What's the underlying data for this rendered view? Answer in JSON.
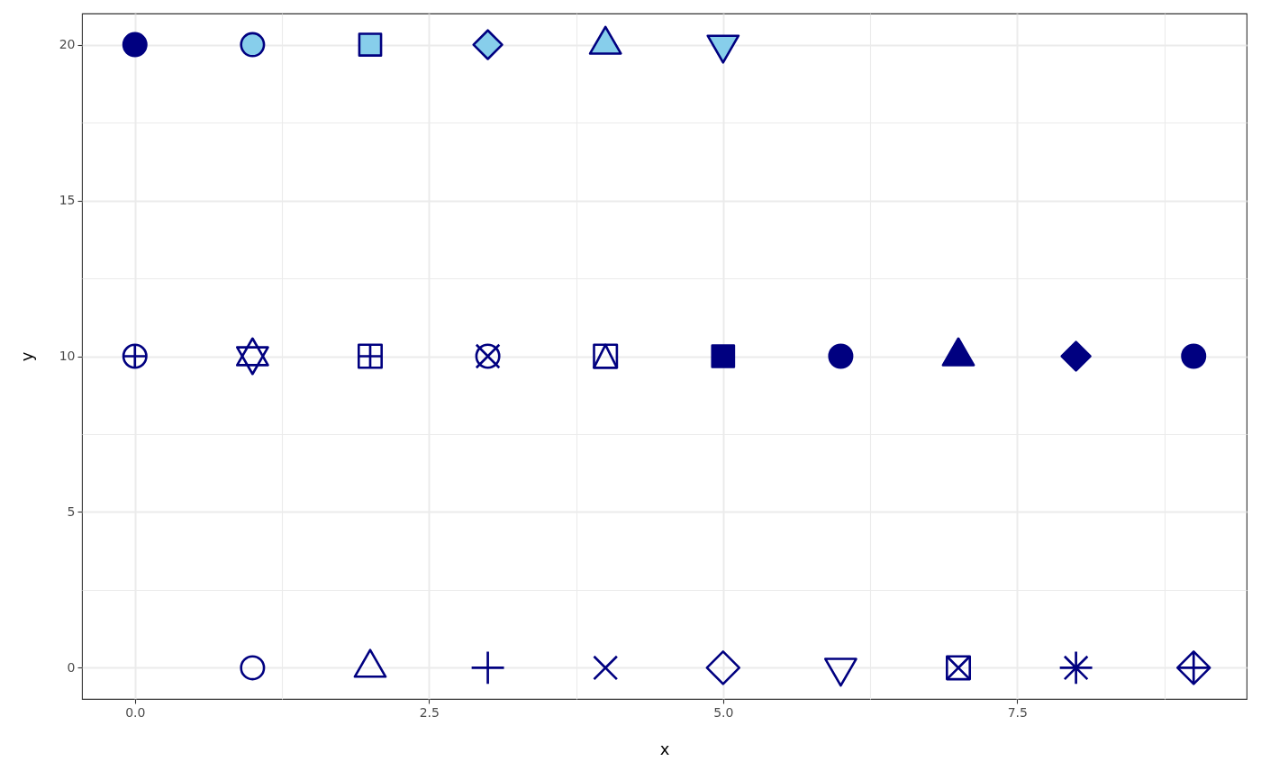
{
  "chart_data": {
    "type": "scatter",
    "xlabel": "x",
    "ylabel": "y",
    "xlim": [
      -0.45,
      9.45
    ],
    "ylim": [
      -1,
      21
    ],
    "xticks": [
      {
        "value": 0,
        "label": "0.0"
      },
      2.5,
      {
        "value": 5,
        "label": "5.0"
      },
      7.5
    ],
    "yticks": [
      0,
      5,
      10,
      15,
      20
    ],
    "grid": true,
    "series": [
      {
        "marker": "circle",
        "color": "#000080",
        "x": [
          1,
          0,
          3
        ],
        "values": [
          0,
          10,
          10
        ]
      },
      {
        "marker": "square",
        "color": "#000080",
        "x": [
          4,
          2,
          7
        ],
        "values": [
          10,
          10,
          0
        ]
      },
      {
        "marker": "triangle",
        "color": "#000080",
        "x": [
          2,
          1,
          4
        ],
        "values": [
          0,
          10,
          10
        ]
      },
      {
        "marker": "cross",
        "color": "#000080",
        "x": [
          3,
          8,
          9,
          0,
          2
        ],
        "values": [
          0,
          0,
          0,
          10,
          10
        ]
      },
      {
        "marker": "x",
        "color": "#000080",
        "x": [
          4,
          7,
          8,
          3
        ],
        "values": [
          0,
          0,
          0,
          10
        ]
      },
      {
        "marker": "diamond",
        "color": "#000080",
        "x": [
          5,
          9
        ],
        "values": [
          0,
          0
        ]
      },
      {
        "marker": "triangle-down",
        "color": "#000080",
        "x": [
          6,
          1
        ],
        "values": [
          0,
          10
        ]
      },
      {
        "marker": "square",
        "color": "#000080",
        "x": [
          5,
          2
        ],
        "values": [
          10,
          20
        ],
        "colors": [
          "#000080",
          "#87ceeb"
        ]
      },
      {
        "marker": "circle",
        "color": "#000080",
        "x": [
          6,
          9,
          0,
          1
        ],
        "values": [
          10,
          10,
          20,
          20
        ],
        "colors": [
          "#000080",
          "#000080",
          "#000080",
          "#87ceeb"
        ]
      },
      {
        "marker": "triangle",
        "color": "#000080",
        "x": [
          7,
          4
        ],
        "values": [
          10,
          20
        ],
        "colors": [
          "#000080",
          "#87ceeb"
        ]
      },
      {
        "marker": "diamond",
        "color": "#000080",
        "x": [
          8,
          3
        ],
        "values": [
          10,
          20
        ],
        "colors": [
          "#000080",
          "#87ceeb"
        ]
      },
      {
        "marker": "triangle-down",
        "color": "#000080",
        "x": [
          5
        ],
        "values": [
          20
        ],
        "colors": [
          "#87ceeb"
        ]
      }
    ]
  }
}
